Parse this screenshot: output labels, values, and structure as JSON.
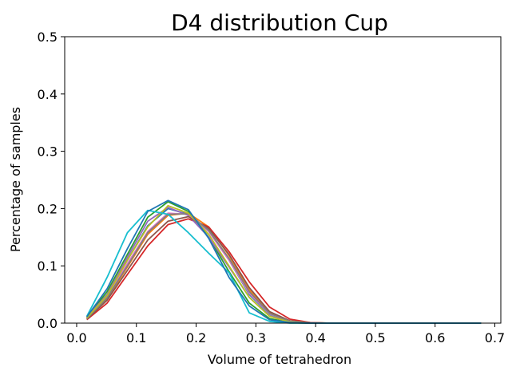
{
  "chart_data": {
    "type": "line",
    "title": "D4 distribution Cup",
    "xlabel": "Volume of tetrahedron",
    "ylabel": "Percentage of samples",
    "xlim": [
      -0.02,
      0.71
    ],
    "ylim": [
      0,
      0.5
    ],
    "xticks": [
      0.0,
      0.1,
      0.2,
      0.3,
      0.4,
      0.5,
      0.6,
      0.7
    ],
    "xtick_labels": [
      "0.0",
      "0.1",
      "0.2",
      "0.3",
      "0.4",
      "0.5",
      "0.6",
      "0.7"
    ],
    "yticks": [
      0.0,
      0.1,
      0.2,
      0.3,
      0.4,
      0.5
    ],
    "ytick_labels": [
      "0.0",
      "0.1",
      "0.2",
      "0.3",
      "0.4",
      "0.5"
    ],
    "grid": false,
    "legend": "none",
    "x": [
      0.017,
      0.051,
      0.085,
      0.119,
      0.153,
      0.187,
      0.221,
      0.255,
      0.289,
      0.323,
      0.357,
      0.391,
      0.425,
      0.459,
      0.493,
      0.527,
      0.561,
      0.595,
      0.629,
      0.663,
      0.677
    ],
    "series": [
      {
        "color": "#1f77b4",
        "values": [
          0.01,
          0.05,
          0.11,
          0.17,
          0.2,
          0.19,
          0.16,
          0.11,
          0.05,
          0.015,
          0.003,
          0.0005,
          0,
          0,
          0,
          0,
          0,
          0,
          0,
          0,
          0
        ]
      },
      {
        "color": "#ff7f0e",
        "values": [
          0.008,
          0.042,
          0.098,
          0.155,
          0.188,
          0.192,
          0.168,
          0.118,
          0.058,
          0.018,
          0.004,
          0.001,
          0,
          0,
          0,
          0,
          0,
          0,
          0,
          0,
          0
        ]
      },
      {
        "color": "#2ca02c",
        "values": [
          0.01,
          0.055,
          0.12,
          0.185,
          0.212,
          0.195,
          0.15,
          0.09,
          0.035,
          0.008,
          0.001,
          0,
          0,
          0,
          0,
          0,
          0,
          0,
          0,
          0,
          0
        ]
      },
      {
        "color": "#d62728",
        "values": [
          0.006,
          0.035,
          0.085,
          0.135,
          0.172,
          0.182,
          0.168,
          0.125,
          0.072,
          0.028,
          0.007,
          0.001,
          0,
          0,
          0,
          0,
          0,
          0,
          0,
          0,
          0
        ]
      },
      {
        "color": "#9467bd",
        "values": [
          0.01,
          0.05,
          0.115,
          0.178,
          0.202,
          0.188,
          0.15,
          0.098,
          0.045,
          0.012,
          0.002,
          0,
          0,
          0,
          0,
          0,
          0,
          0,
          0,
          0,
          0
        ]
      },
      {
        "color": "#8c564b",
        "values": [
          0.007,
          0.04,
          0.092,
          0.145,
          0.178,
          0.186,
          0.165,
          0.12,
          0.062,
          0.02,
          0.004,
          0.0005,
          0,
          0,
          0,
          0,
          0,
          0,
          0,
          0,
          0
        ]
      },
      {
        "color": "#e377c2",
        "values": [
          0.009,
          0.046,
          0.104,
          0.16,
          0.192,
          0.19,
          0.16,
          0.11,
          0.052,
          0.016,
          0.003,
          0,
          0,
          0,
          0,
          0,
          0,
          0,
          0,
          0,
          0
        ]
      },
      {
        "color": "#7f7f7f",
        "values": [
          0.008,
          0.044,
          0.1,
          0.158,
          0.19,
          0.191,
          0.162,
          0.113,
          0.055,
          0.017,
          0.003,
          0.0005,
          0,
          0,
          0,
          0,
          0,
          0,
          0,
          0,
          0
        ]
      },
      {
        "color": "#bcbd22",
        "values": [
          0.009,
          0.048,
          0.11,
          0.168,
          0.205,
          0.192,
          0.155,
          0.1,
          0.045,
          0.012,
          0.002,
          0,
          0,
          0,
          0,
          0,
          0,
          0,
          0,
          0,
          0
        ]
      },
      {
        "color": "#17becf",
        "values": [
          0.012,
          0.08,
          0.158,
          0.197,
          0.19,
          0.158,
          0.122,
          0.088,
          0.018,
          0.003,
          0,
          0,
          0,
          0,
          0,
          0,
          0,
          0,
          0,
          0,
          0
        ]
      },
      {
        "color": "#1f77b4",
        "values": [
          0.011,
          0.06,
          0.13,
          0.195,
          0.214,
          0.198,
          0.148,
          0.08,
          0.03,
          0.006,
          0.001,
          0,
          0,
          0,
          0,
          0,
          0,
          0,
          0,
          0,
          0
        ]
      }
    ]
  }
}
